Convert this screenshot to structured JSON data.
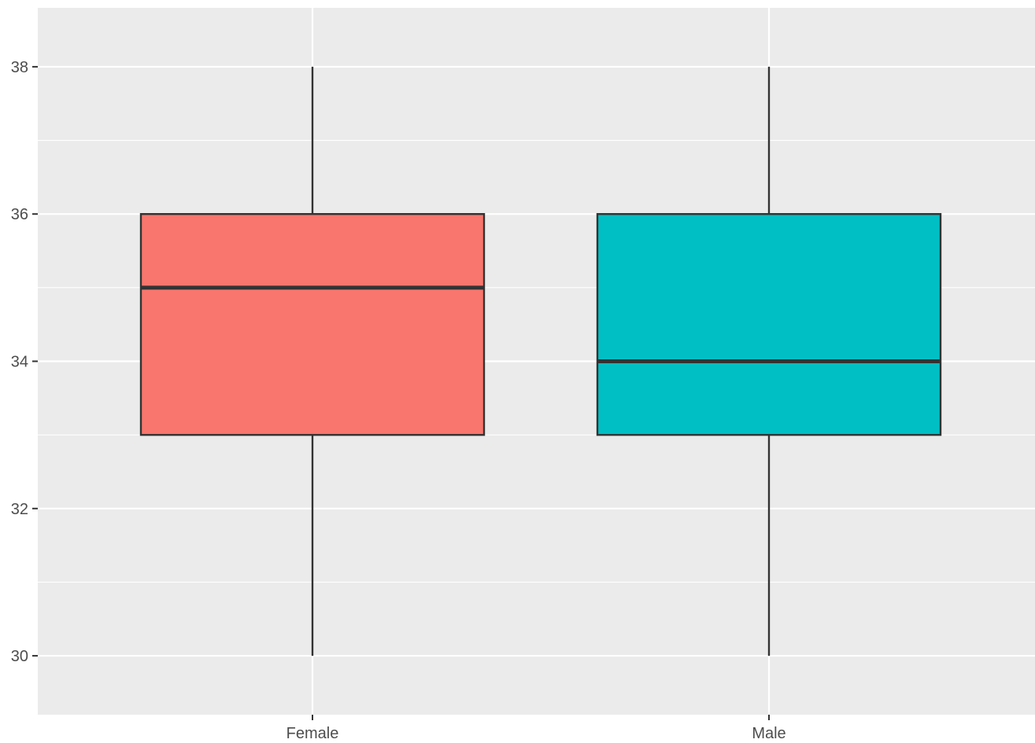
{
  "chart_data": {
    "type": "boxplot",
    "title": "",
    "xlabel": "",
    "ylabel": "",
    "categories": [
      "Female",
      "Male"
    ],
    "boxes": [
      {
        "category": "Female",
        "min": 30,
        "q1": 33,
        "median": 35,
        "q3": 36,
        "max": 38,
        "fill": "#F8766D"
      },
      {
        "category": "Male",
        "min": 30,
        "q1": 33,
        "median": 34,
        "q3": 36,
        "max": 38,
        "fill": "#00BFC4"
      }
    ],
    "yticks": [
      "30",
      "32",
      "34",
      "36",
      "38"
    ],
    "ylim": [
      29.2,
      38.8
    ],
    "grid": true,
    "legend": "none",
    "colors": {
      "panel_background": "#EBEBEB",
      "grid_line": "#FFFFFF",
      "box_outline": "#333333",
      "tick_text": "#4D4D4D"
    }
  }
}
